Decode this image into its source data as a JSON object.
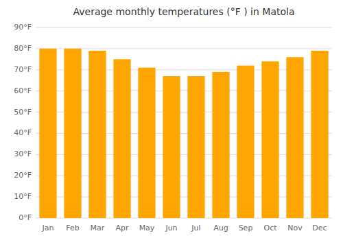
{
  "chart_data": {
    "type": "bar",
    "title": "Average monthly temperatures (°F ) in Matola",
    "categories": [
      "Jan",
      "Feb",
      "Mar",
      "Apr",
      "May",
      "Jun",
      "Jul",
      "Aug",
      "Sep",
      "Oct",
      "Nov",
      "Dec"
    ],
    "values": [
      80,
      80,
      79,
      75,
      71,
      67,
      67,
      69,
      72,
      74,
      76,
      79
    ],
    "color": "#FFA500",
    "ylim": [
      0,
      90
    ],
    "yticks": [
      {
        "value": 0,
        "label": "0°F"
      },
      {
        "value": 10,
        "label": "10°F"
      },
      {
        "value": 20,
        "label": "20°F"
      },
      {
        "value": 30,
        "label": "30°F"
      },
      {
        "value": 40,
        "label": "40°F"
      },
      {
        "value": 50,
        "label": "50°F"
      },
      {
        "value": 60,
        "label": "60°F"
      },
      {
        "value": 70,
        "label": "70°F"
      },
      {
        "value": 80,
        "label": "80°F"
      },
      {
        "value": 90,
        "label": "90°F"
      }
    ],
    "grid": true
  }
}
